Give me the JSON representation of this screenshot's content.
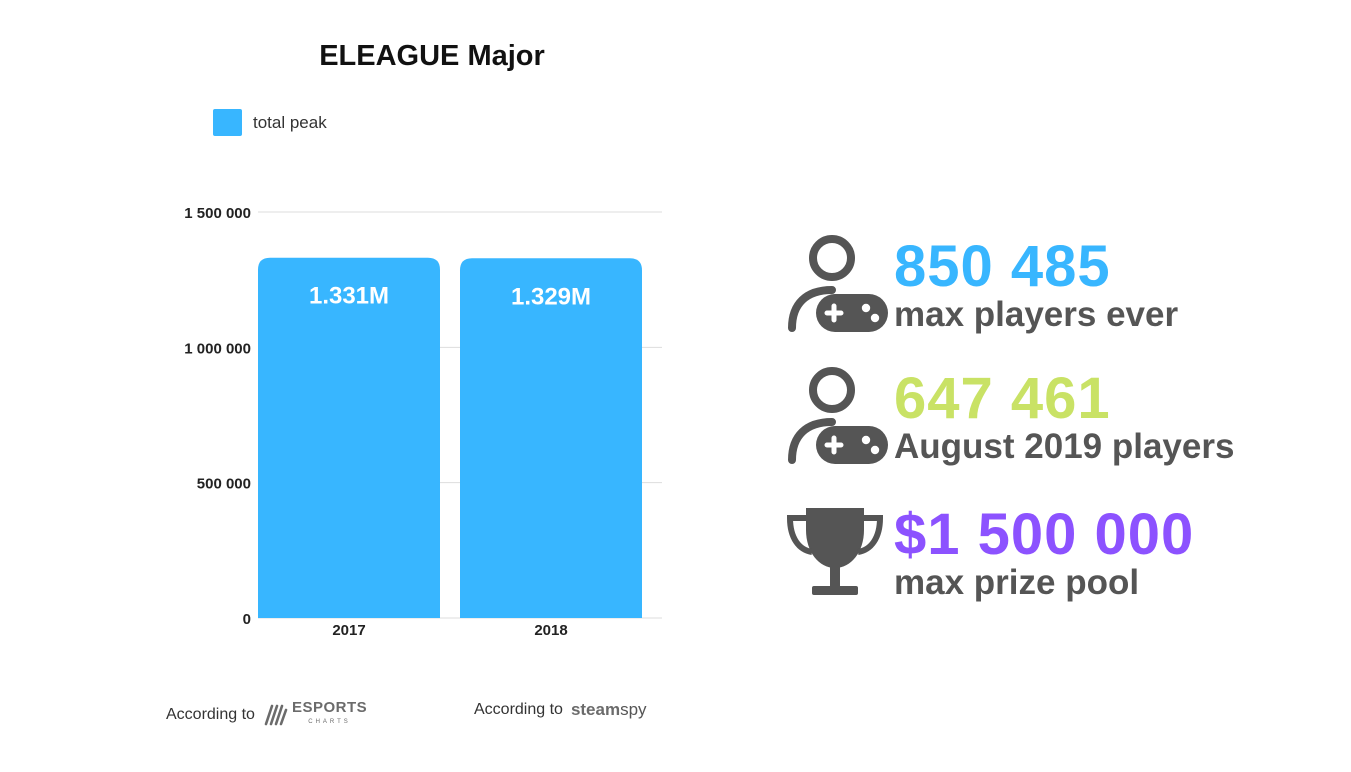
{
  "chart_data": {
    "type": "bar",
    "title": "ELEAGUE Major",
    "categories": [
      "2017",
      "2018"
    ],
    "series": [
      {
        "name": "total peak",
        "values": [
          1331000,
          1329000
        ],
        "color": "#38b6ff"
      }
    ],
    "data_labels": [
      "1.331M",
      "1.329M"
    ],
    "ylim": [
      0,
      1500000
    ],
    "yticks": [
      0,
      500000,
      1000000,
      1500000
    ],
    "ytick_labels": [
      "0",
      "500 000",
      "1 000 000",
      "1 500 000"
    ],
    "grid": true,
    "legend_position": "top-left"
  },
  "sources": {
    "left_prefix": "According to",
    "left_brand": "ESPORTS",
    "left_brand_sub": "CHARTS",
    "right_prefix": "According to",
    "right_brand_bold": "steam",
    "right_brand_rest": "spy"
  },
  "stats": [
    {
      "value": "850 485",
      "label": "max players ever",
      "color": "#38b6ff",
      "icon": "player-gamepad-icon"
    },
    {
      "value": "647 461",
      "label": "August 2019 players",
      "color": "#c9e265",
      "icon": "player-gamepad-icon"
    },
    {
      "value": "$1 500 000",
      "label": "max prize pool",
      "color": "#8c52ff",
      "icon": "trophy-icon"
    }
  ]
}
